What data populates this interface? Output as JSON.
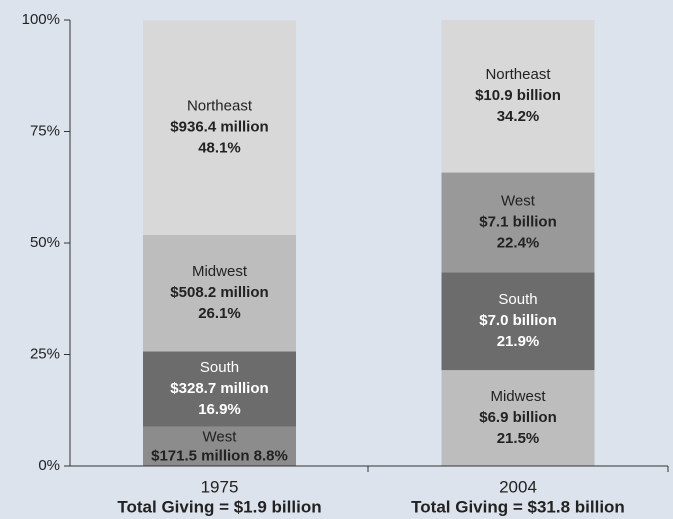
{
  "chart_data": {
    "type": "stacked-bar",
    "categories": [
      "1975",
      "2004"
    ],
    "category_notes": [
      "Total Giving = $1.9 billion",
      "Total Giving = $31.8 billion"
    ],
    "stacks": [
      [
        {
          "name": "West",
          "value": 8.8,
          "value_label": "8.8%",
          "amount": "$171.5 million",
          "color": "#8c8c8c"
        },
        {
          "name": "South",
          "value": 16.9,
          "value_label": "16.9%",
          "amount": "$328.7 million",
          "color": "#6c6c6c"
        },
        {
          "name": "Midwest",
          "value": 26.1,
          "value_label": "26.1%",
          "amount": "$508.2 million",
          "color": "#bdbdbd"
        },
        {
          "name": "Northeast",
          "value": 48.1,
          "value_label": "48.1%",
          "amount": "$936.4 million",
          "color": "#d8d8d8"
        }
      ],
      [
        {
          "name": "Midwest",
          "value": 21.5,
          "value_label": "21.5%",
          "amount": "$6.9 billion",
          "color": "#bdbdbd"
        },
        {
          "name": "South",
          "value": 21.9,
          "value_label": "21.9%",
          "amount": "$7.0 billion",
          "color": "#6c6c6c"
        },
        {
          "name": "West",
          "value": 22.4,
          "value_label": "22.4%",
          "amount": "$7.1 billion",
          "color": "#999999"
        },
        {
          "name": "Northeast",
          "value": 34.2,
          "value_label": "34.2%",
          "amount": "$10.9 billion",
          "color": "#d8d8d8"
        }
      ]
    ],
    "ylim": [
      0,
      100
    ],
    "yticks": [
      {
        "value": 0,
        "label": "0%"
      },
      {
        "value": 25,
        "label": "25%"
      },
      {
        "value": 50,
        "label": "50%"
      },
      {
        "value": 75,
        "label": "75%"
      },
      {
        "value": 100,
        "label": "100%"
      }
    ]
  }
}
